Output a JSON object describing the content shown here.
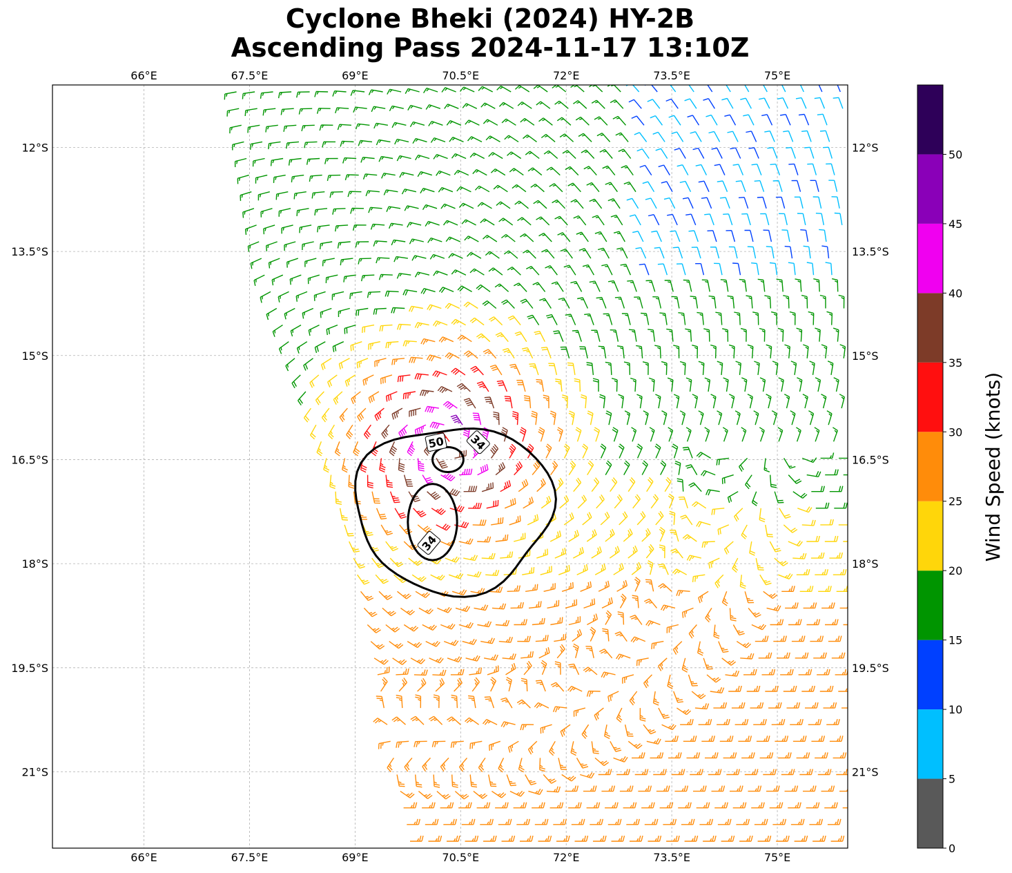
{
  "title_line1": "Cyclone Bheki (2024) HY-2B",
  "title_line2": "Ascending Pass 2024-11-17 13:10Z",
  "lon_ticks": [
    "66°E",
    "67.5°E",
    "69°E",
    "70.5°E",
    "72°E",
    "73.5°E",
    "75°E"
  ],
  "lat_ticks": [
    "12°S",
    "13.5°S",
    "15°S",
    "16.5°S",
    "18°S",
    "19.5°S",
    "21°S"
  ],
  "colorbar": {
    "label": "Wind Speed (knots)",
    "ticks": [
      "0",
      "5",
      "10",
      "15",
      "20",
      "25",
      "30",
      "35",
      "40",
      "45",
      "50"
    ],
    "bins": [
      {
        "from": 0,
        "to": 5,
        "color": "#595959"
      },
      {
        "from": 5,
        "to": 10,
        "color": "#00bfff"
      },
      {
        "from": 10,
        "to": 15,
        "color": "#0040ff"
      },
      {
        "from": 15,
        "to": 20,
        "color": "#009500"
      },
      {
        "from": 20,
        "to": 25,
        "color": "#ffd60a"
      },
      {
        "from": 25,
        "to": 30,
        "color": "#ff8c0a"
      },
      {
        "from": 30,
        "to": 35,
        "color": "#ff0f0f"
      },
      {
        "from": 35,
        "to": 40,
        "color": "#7d3b28"
      },
      {
        "from": 40,
        "to": 45,
        "color": "#f000f0"
      },
      {
        "from": 45,
        "to": 50,
        "color": "#8a00b8"
      },
      {
        "from": 50,
        "to": 55,
        "color": "#2e0059"
      }
    ]
  },
  "contour_labels": [
    "50",
    "34",
    "34"
  ],
  "chart_data": {
    "type": "wind-barb-map",
    "center": {
      "lat": -16.3,
      "lon": 70.3
    },
    "xlim": [
      64.7,
      76
    ],
    "ylim": [
      -22.1,
      -11.1
    ],
    "grid": true,
    "swath_west_edge": [
      [
        -11.1,
        67.3
      ],
      [
        -13.8,
        67.7
      ],
      [
        -15.2,
        68.2
      ],
      [
        -16.5,
        68.6
      ],
      [
        -18.0,
        69.0
      ],
      [
        -19.5,
        69.3
      ],
      [
        -22.1,
        69.8
      ]
    ],
    "contours_knots": [
      34,
      50
    ]
  }
}
